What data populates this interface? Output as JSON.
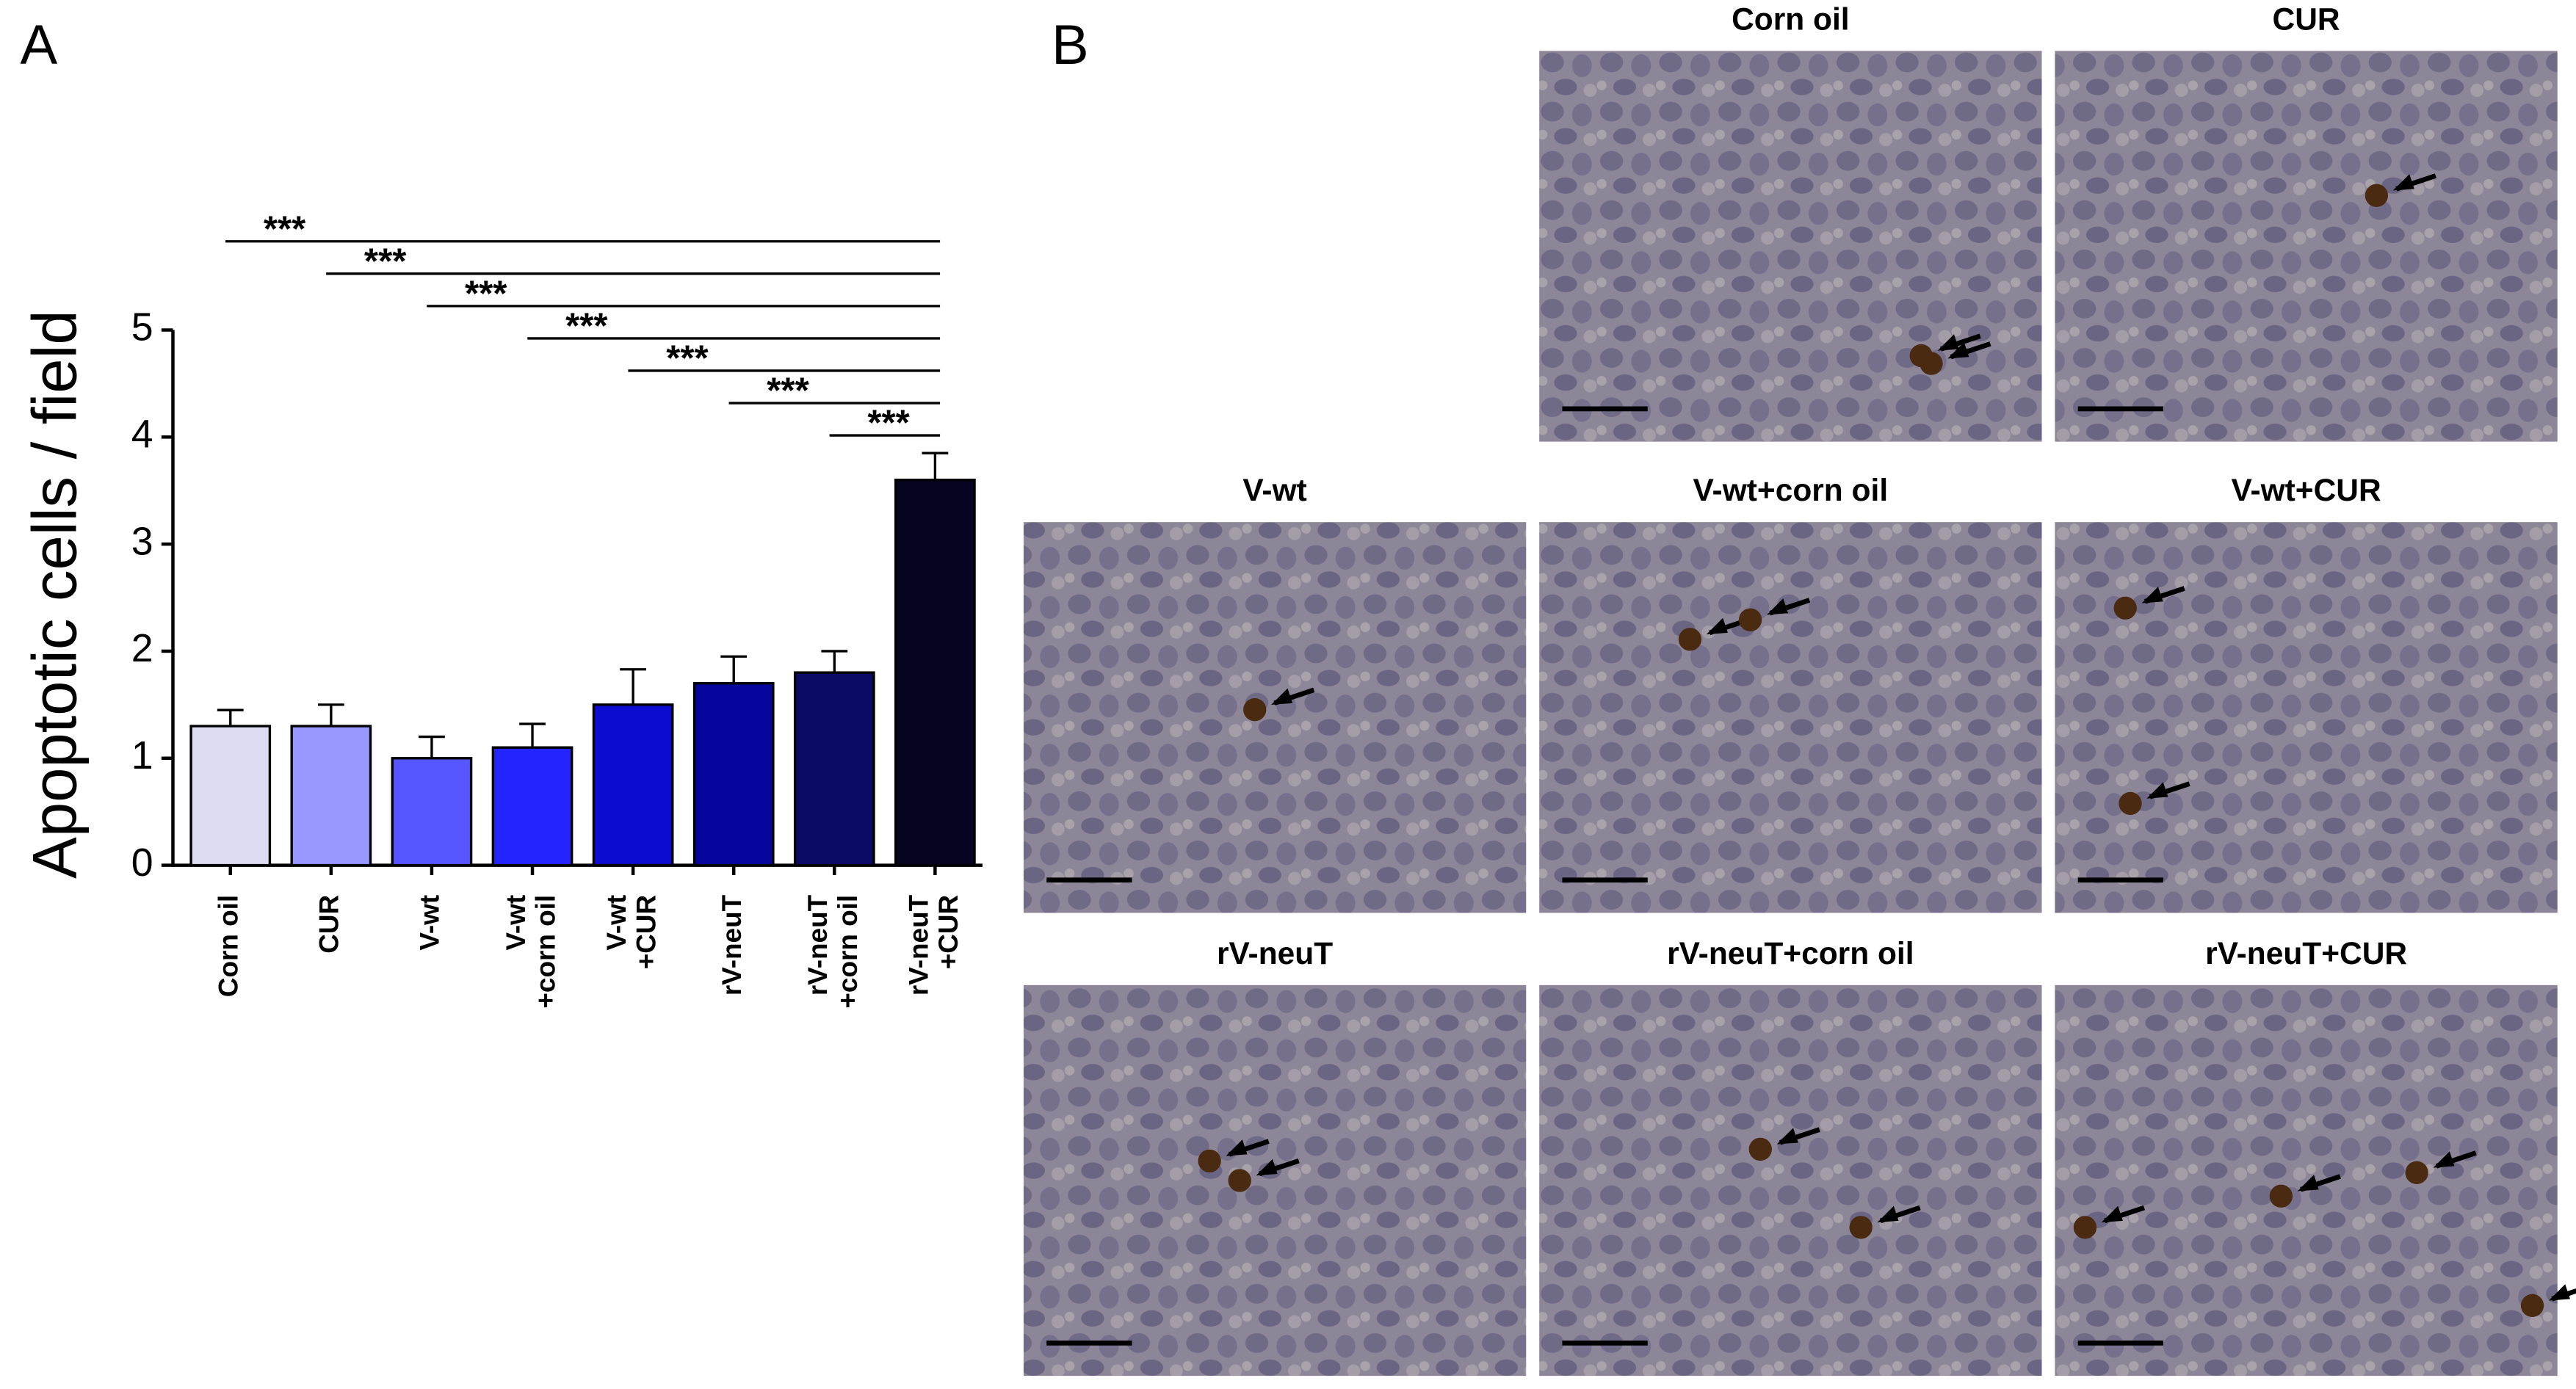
{
  "chart_data": {
    "type": "bar",
    "panel_label": "A",
    "y_label": "Apoptotic cells / field",
    "categories": [
      "Corn oil",
      "CUR",
      "V-wt",
      "V-wt\n+corn oil",
      "V-wt\n+CUR",
      "rV-neuT",
      "rV-neuT\n+corn oil",
      "rV-neuT\n+CUR"
    ],
    "values": [
      1.3,
      1.3,
      1.0,
      1.1,
      1.5,
      1.7,
      1.8,
      3.6
    ],
    "errors": [
      0.15,
      0.2,
      0.2,
      0.22,
      0.33,
      0.25,
      0.2,
      0.25
    ],
    "colors": [
      "#dcdcf2",
      "#9898ff",
      "#5656ff",
      "#2424ff",
      "#0c0cd0",
      "#06069c",
      "#0b0b66",
      "#050522"
    ],
    "ylim": [
      0,
      5
    ],
    "yticks": [
      0,
      1,
      2,
      3,
      4,
      5
    ],
    "significance": [
      {
        "label": "***",
        "from": 0,
        "to": 7
      },
      {
        "label": "***",
        "from": 1,
        "to": 7
      },
      {
        "label": "***",
        "from": 2,
        "to": 7
      },
      {
        "label": "***",
        "from": 3,
        "to": 7
      },
      {
        "label": "***",
        "from": 4,
        "to": 7
      },
      {
        "label": "***",
        "from": 5,
        "to": 7
      },
      {
        "label": "***",
        "from": 6,
        "to": 7
      }
    ]
  },
  "panel_b": {
    "label": "B",
    "images": [
      {
        "title": "Corn oil"
      },
      {
        "title": "CUR"
      },
      {
        "title": "V-wt"
      },
      {
        "title": "V-wt+corn oil"
      },
      {
        "title": "V-wt+CUR"
      },
      {
        "title": "rV-neuT"
      },
      {
        "title": "rV-neuT+corn oil"
      },
      {
        "title": "rV-neuT+CUR"
      }
    ]
  }
}
